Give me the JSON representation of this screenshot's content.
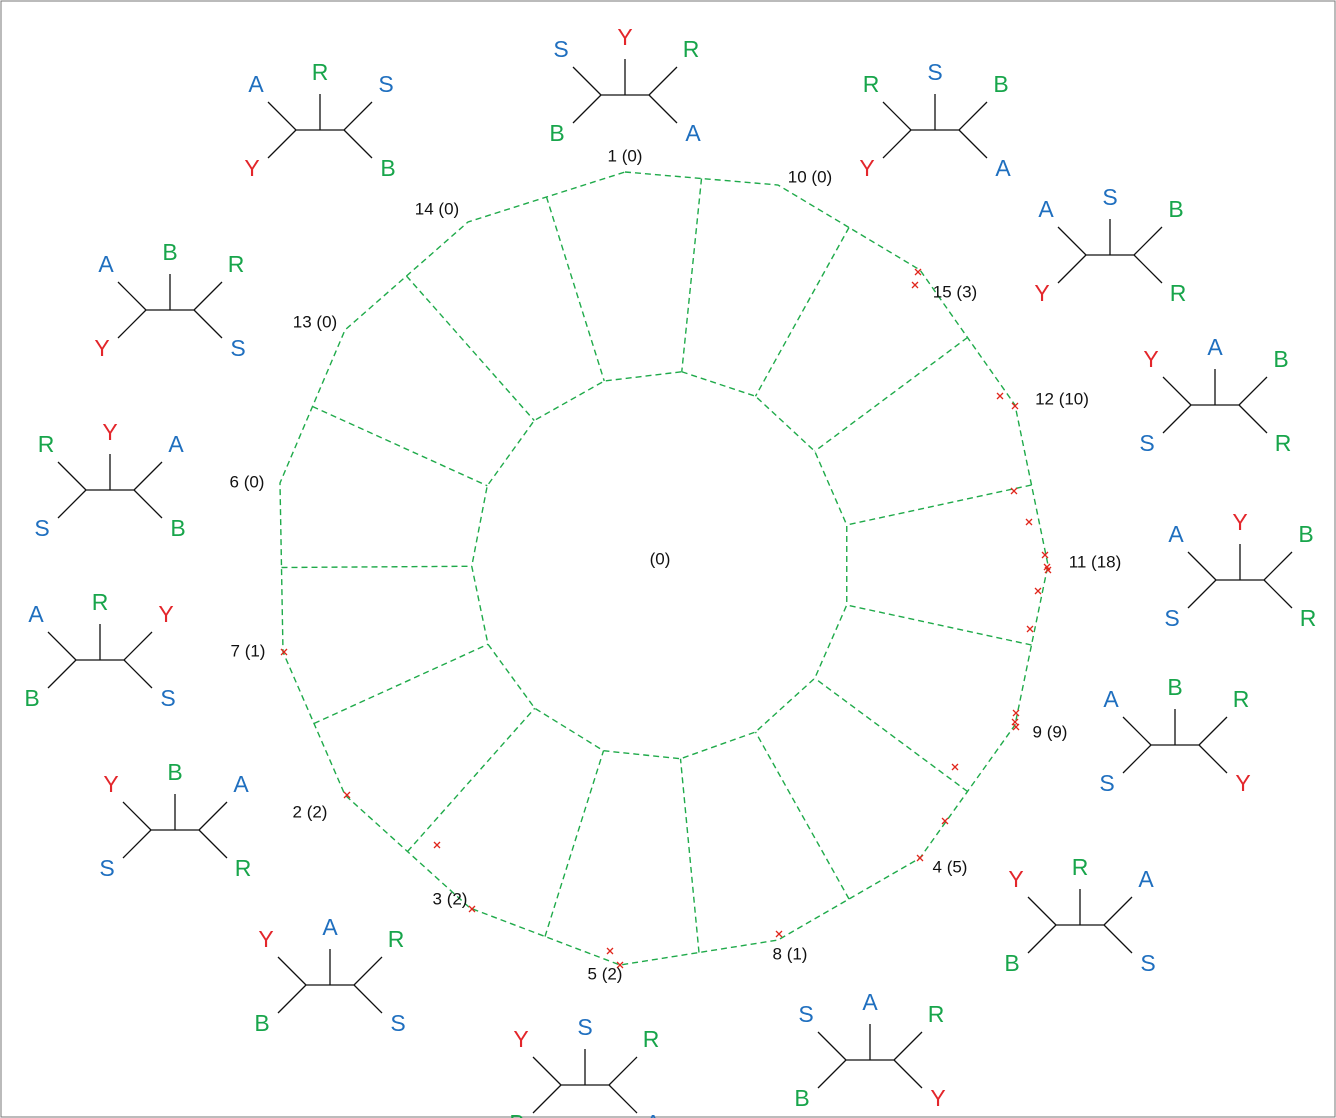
{
  "center_label": "(0)",
  "leaf_colors": {
    "A": "#1f6fbf",
    "S": "#1f6fbf",
    "Y": "#e3262b",
    "R": "#18a54b",
    "B": "#18a54b"
  },
  "nodes": [
    {
      "label": "1 (0)",
      "tree": [
        "S",
        "B",
        "Y",
        "R",
        "A"
      ]
    },
    {
      "label": "10 (0)",
      "tree": [
        "R",
        "Y",
        "S",
        "B",
        "A"
      ]
    },
    {
      "label": "15 (3)",
      "tree": [
        "A",
        "Y",
        "S",
        "B",
        "R"
      ]
    },
    {
      "label": "12 (10)",
      "tree": [
        "Y",
        "S",
        "A",
        "B",
        "R"
      ]
    },
    {
      "label": "11 (18)",
      "tree": [
        "A",
        "S",
        "Y",
        "B",
        "R"
      ]
    },
    {
      "label": "9 (9)",
      "tree": [
        "A",
        "S",
        "B",
        "R",
        "Y"
      ]
    },
    {
      "label": "4 (5)",
      "tree": [
        "Y",
        "B",
        "R",
        "A",
        "S"
      ]
    },
    {
      "label": "8 (1)",
      "tree": [
        "S",
        "B",
        "A",
        "R",
        "Y"
      ]
    },
    {
      "label": "5 (2)",
      "tree": [
        "Y",
        "B",
        "S",
        "R",
        "A"
      ]
    },
    {
      "label": "3 (2)",
      "tree": [
        "Y",
        "B",
        "A",
        "R",
        "S"
      ]
    },
    {
      "label": "2 (2)",
      "tree": [
        "Y",
        "S",
        "B",
        "A",
        "R"
      ]
    },
    {
      "label": "7 (1)",
      "tree": [
        "A",
        "B",
        "R",
        "Y",
        "S"
      ]
    },
    {
      "label": "6 (0)",
      "tree": [
        "R",
        "S",
        "Y",
        "A",
        "B"
      ]
    },
    {
      "label": "13 (0)",
      "tree": [
        "A",
        "Y",
        "B",
        "R",
        "S"
      ]
    },
    {
      "label": "14 (0)",
      "tree": [
        "A",
        "Y",
        "R",
        "S",
        "B"
      ]
    }
  ]
}
